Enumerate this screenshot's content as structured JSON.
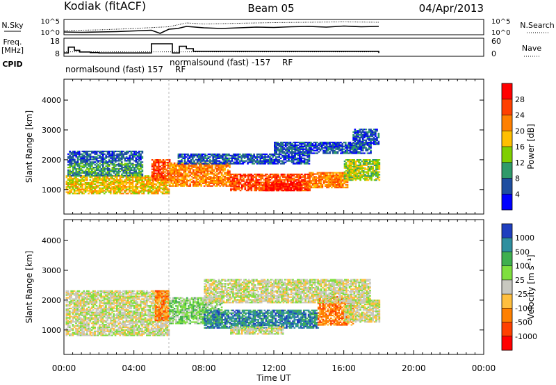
{
  "header": {
    "station": "Kodiak (fitACF)",
    "beam": "Beam 05",
    "date": "04/Apr/2013"
  },
  "chart_data": [
    {
      "type": "line",
      "panel": "noise",
      "ylabel_top": "N.Sky",
      "ylabel_right": "N.Search",
      "ytick_labels": [
        "10^5",
        "10^0"
      ],
      "ytick_labels_right": [
        "10^5",
        "10^0"
      ],
      "xlim": [
        0,
        24
      ],
      "series": [
        {
          "name": "N.Sky",
          "x": [
            0.0,
            1.0,
            2.0,
            3.0,
            4.0,
            5.0,
            5.5,
            6.0,
            6.5,
            7.0,
            8.0,
            9.0,
            10.0,
            11.0,
            12.0,
            13.0,
            14.0,
            15.0,
            16.0,
            17.0,
            18.0
          ],
          "values": [
            0.8,
            0.7,
            0.8,
            0.9,
            1.1,
            1.3,
            0.4,
            1.6,
            1.8,
            2.4,
            2.0,
            1.8,
            2.0,
            2.2,
            2.1,
            2.3,
            2.4,
            2.2,
            2.5,
            2.3,
            2.4
          ]
        },
        {
          "name": "N.Search",
          "x": [
            0.0,
            2.0,
            4.0,
            6.0,
            7.0,
            8.0,
            10.0,
            12.0,
            14.0,
            16.0,
            18.0
          ],
          "values": [
            1.2,
            1.4,
            1.8,
            2.3,
            3.4,
            3.1,
            3.3,
            3.5,
            3.6,
            3.7,
            3.6
          ]
        }
      ]
    },
    {
      "type": "line",
      "panel": "frequency",
      "ylabel_left": "Freq.",
      "ylabel_left_unit": "[MHz]",
      "ylabel_right": "Nave",
      "ytick_labels": [
        "18",
        "8"
      ],
      "ytick_labels_right": [
        "60",
        "0"
      ],
      "ylim": [
        8,
        18
      ],
      "ylim_right": [
        0,
        60
      ],
      "xlim": [
        0,
        24
      ],
      "series": [
        {
          "name": "Freq.",
          "x": [
            0.0,
            0.25,
            0.6,
            0.9,
            1.5,
            2.0,
            4.8,
            5.0,
            6.0,
            6.2,
            6.6,
            7.0,
            7.4,
            18.0
          ],
          "values": [
            10.0,
            13.5,
            11.6,
            10.6,
            10.2,
            10.0,
            10.0,
            15.5,
            15.5,
            10.0,
            14.0,
            12.6,
            11.0,
            10.0
          ]
        },
        {
          "name": "Nave",
          "x": [
            0.0,
            18.0
          ],
          "values": [
            16,
            16
          ]
        }
      ]
    },
    {
      "type": "table",
      "panel": "cpid",
      "label": "CPID",
      "entries": [
        {
          "text": "normalsound (fast) 157",
          "suffix": "RF",
          "start": 0.0
        },
        {
          "text": "normalsound (fast) -157",
          "suffix": "RF",
          "start": 6.0
        }
      ]
    },
    {
      "type": "heatmap",
      "panel": "power",
      "ylabel": "Slant Range [km]",
      "colorbar_label": "Power [dB]",
      "colorbar_ticks": [
        "28",
        "24",
        "20",
        "16",
        "12",
        "8",
        "4"
      ],
      "colorbar_colors": [
        "#ff0000",
        "#ff4000",
        "#ff8000",
        "#ffbf00",
        "#7fcf00",
        "#2f9a6a",
        "#1e4ea0",
        "#0000ff"
      ],
      "ytick_labels": [
        "4000",
        "3000",
        "2000",
        "1000"
      ],
      "yticks": [
        4000,
        3000,
        2000,
        1000
      ],
      "ylim": [
        180,
        4700
      ],
      "xlim": [
        0,
        24
      ],
      "echo_regions": [
        {
          "t0": 0.1,
          "t1": 6.0,
          "r0": 850,
          "r1": 1450,
          "level": 3
        },
        {
          "t0": 0.2,
          "t1": 4.5,
          "r0": 1450,
          "r1": 1900,
          "level": 5
        },
        {
          "t0": 0.2,
          "t1": 4.5,
          "r0": 1900,
          "r1": 2300,
          "level": 6
        },
        {
          "t0": 5.0,
          "t1": 6.0,
          "r0": 1300,
          "r1": 2000,
          "level": 1
        },
        {
          "t0": 6.0,
          "t1": 9.5,
          "r0": 1100,
          "r1": 1900,
          "level": 2
        },
        {
          "t0": 9.5,
          "t1": 14.0,
          "r0": 950,
          "r1": 1500,
          "level": 1
        },
        {
          "t0": 11.5,
          "t1": 13.5,
          "r0": 950,
          "r1": 1200,
          "level": 0
        },
        {
          "t0": 14.0,
          "t1": 16.2,
          "r0": 1050,
          "r1": 1550,
          "level": 2
        },
        {
          "t0": 16.0,
          "t1": 18.0,
          "r0": 1300,
          "r1": 2000,
          "level": 4
        },
        {
          "t0": 6.5,
          "t1": 14.0,
          "r0": 1850,
          "r1": 2200,
          "level": 6
        },
        {
          "t0": 12.0,
          "t1": 17.5,
          "r0": 2200,
          "r1": 2600,
          "level": 6
        },
        {
          "t0": 16.5,
          "t1": 18.0,
          "r0": 2500,
          "r1": 3000,
          "level": 6
        }
      ]
    },
    {
      "type": "heatmap",
      "panel": "velocity",
      "ylabel": "Slant Range [km]",
      "colorbar_label": "Velocity [m s⁻¹]",
      "colorbar_ticks": [
        "1000",
        "500",
        "100",
        "25",
        "-25",
        "-100",
        "-500",
        "-1000"
      ],
      "colorbar_colors": [
        "#1f3fbf",
        "#2f8f9f",
        "#3faf4f",
        "#7fdf3f",
        "#c8c8c0",
        "#ffbf3f",
        "#ff8000",
        "#ff4000",
        "#ff0000"
      ],
      "ytick_labels": [
        "4000",
        "3000",
        "2000",
        "1000"
      ],
      "yticks": [
        4000,
        3000,
        2000,
        1000
      ],
      "ylim": [
        180,
        4700
      ],
      "xlim": [
        0,
        24
      ],
      "echo_regions": [
        {
          "t0": 0.1,
          "t1": 6.0,
          "r0": 800,
          "r1": 2300,
          "level": 4
        },
        {
          "t0": 5.2,
          "t1": 6.0,
          "r0": 1300,
          "r1": 2300,
          "level": 6
        },
        {
          "t0": 6.0,
          "t1": 9.0,
          "r0": 1200,
          "r1": 2100,
          "level": 3
        },
        {
          "t0": 8.0,
          "t1": 14.5,
          "r0": 1050,
          "r1": 1650,
          "level": 1
        },
        {
          "t0": 14.5,
          "t1": 16.5,
          "r0": 1150,
          "r1": 2100,
          "level": 6
        },
        {
          "t0": 16.0,
          "t1": 18.0,
          "r0": 1250,
          "r1": 2000,
          "level": 4
        },
        {
          "t0": 8.0,
          "t1": 17.5,
          "r0": 1900,
          "r1": 2700,
          "level": 4
        },
        {
          "t0": 9.5,
          "t1": 12.5,
          "r0": 850,
          "r1": 1100,
          "level": 4
        }
      ]
    }
  ],
  "xaxis": {
    "ticks": [
      0,
      4,
      8,
      12,
      16,
      20,
      24
    ],
    "tick_labels": [
      "00:00",
      "04:00",
      "08:00",
      "12:00",
      "16:00",
      "20:00",
      "00:00"
    ],
    "label": "Time UT"
  }
}
